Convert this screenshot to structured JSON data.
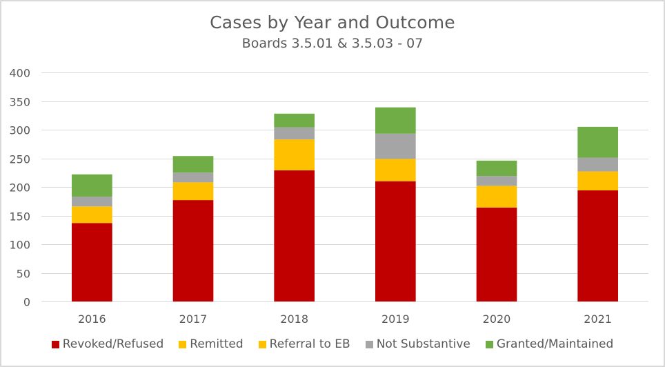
{
  "chart_data": {
    "type": "bar",
    "stacked": true,
    "title": "Cases by Year and Outcome",
    "subtitle": "Boards 3.5.01 & 3.5.03 - 07",
    "xlabel": "",
    "ylabel": "",
    "ylim": [
      0,
      400
    ],
    "yticks": [
      0,
      50,
      100,
      150,
      200,
      250,
      300,
      350,
      400
    ],
    "grid": true,
    "legend_position": "bottom",
    "categories": [
      "2016",
      "2017",
      "2018",
      "2019",
      "2020",
      "2021"
    ],
    "series": [
      {
        "name": "Revoked/Refused",
        "color": "#C00000",
        "values": [
          137,
          177,
          229,
          210,
          164,
          194
        ]
      },
      {
        "name": "Remitted",
        "color": "#FFC000",
        "values": [
          29,
          31,
          54,
          39,
          38,
          33
        ]
      },
      {
        "name": "Referral to EB",
        "color": "#FFC000",
        "values": [
          0,
          0,
          0,
          0,
          0,
          0
        ]
      },
      {
        "name": "Not Substantive",
        "color": "#A5A5A5",
        "values": [
          17,
          17,
          21,
          44,
          17,
          24
        ]
      },
      {
        "name": "Granted/Maintained",
        "color": "#70AD47",
        "values": [
          39,
          29,
          24,
          46,
          27,
          54
        ]
      }
    ]
  }
}
